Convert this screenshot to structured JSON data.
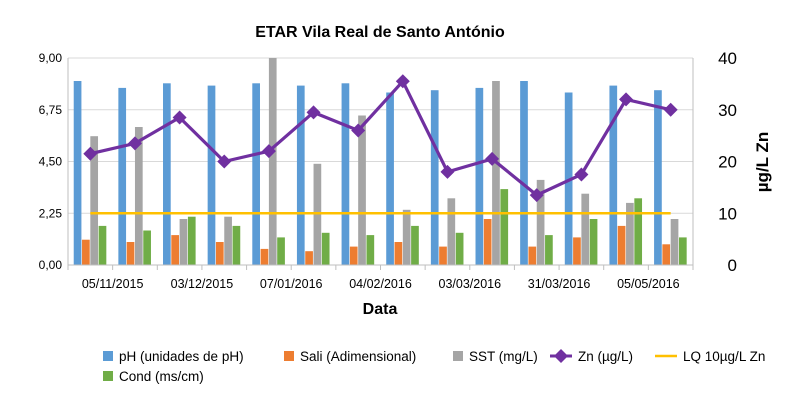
{
  "chart_data": {
    "type": "bar",
    "title": "ETAR Vila Real de Santo António",
    "xlabel": "Data",
    "ylabel": "",
    "y2label": "µg/L Zn",
    "ylim": [
      0,
      9
    ],
    "y2lim": [
      0,
      40
    ],
    "y_ticks": [
      "0,00",
      "2,25",
      "4,50",
      "6,75",
      "9,00"
    ],
    "y2_ticks": [
      "0",
      "10",
      "20",
      "30",
      "40"
    ],
    "x_tick_labels": [
      "05/11/2015",
      "03/12/2015",
      "07/01/2016",
      "04/02/2016",
      "03/03/2016",
      "31/03/2016",
      "05/05/2016"
    ],
    "grid": true,
    "legend_position": "bottom",
    "series": [
      {
        "name": "pH (unidades de pH)",
        "axis": "left",
        "kind": "bar",
        "color": "#5B9BD5",
        "values": [
          8.0,
          7.7,
          7.9,
          7.8,
          7.9,
          7.8,
          7.9,
          7.5,
          7.6,
          7.7,
          8.0,
          7.5,
          7.8,
          7.6
        ]
      },
      {
        "name": "Sali (Adimensional)",
        "axis": "left",
        "kind": "bar",
        "color": "#ED7D31",
        "values": [
          1.1,
          1.0,
          1.3,
          1.0,
          0.7,
          0.6,
          0.8,
          1.0,
          0.8,
          2.0,
          0.8,
          1.2,
          1.7,
          0.9
        ]
      },
      {
        "name": "SST (mg/L)",
        "axis": "left",
        "kind": "bar",
        "color": "#A5A5A5",
        "values": [
          5.6,
          6.0,
          2.0,
          2.1,
          9.0,
          4.4,
          6.5,
          2.4,
          2.9,
          8.0,
          3.7,
          3.1,
          2.7,
          2.0
        ]
      },
      {
        "name": "Zn (µg/L)",
        "axis": "right",
        "kind": "line",
        "color": "#7030A0",
        "values": [
          21.5,
          23.5,
          28.5,
          20.0,
          22.0,
          29.5,
          26.0,
          35.5,
          18.0,
          20.5,
          13.5,
          17.5,
          32.0,
          30.0
        ]
      },
      {
        "name": "LQ 10µg/L Zn",
        "axis": "right",
        "kind": "line",
        "color": "#FFC000",
        "values": [
          10,
          10,
          10,
          10,
          10,
          10,
          10,
          10,
          10,
          10,
          10,
          10,
          10,
          10
        ]
      },
      {
        "name": "Cond (ms/cm)",
        "axis": "left",
        "kind": "bar",
        "color": "#70AD47",
        "values": [
          1.7,
          1.5,
          2.1,
          1.7,
          1.2,
          1.4,
          1.3,
          1.7,
          1.4,
          3.3,
          1.3,
          2.0,
          2.9,
          1.2
        ]
      }
    ],
    "legend_order": [
      0,
      1,
      2,
      3,
      4,
      5
    ]
  }
}
